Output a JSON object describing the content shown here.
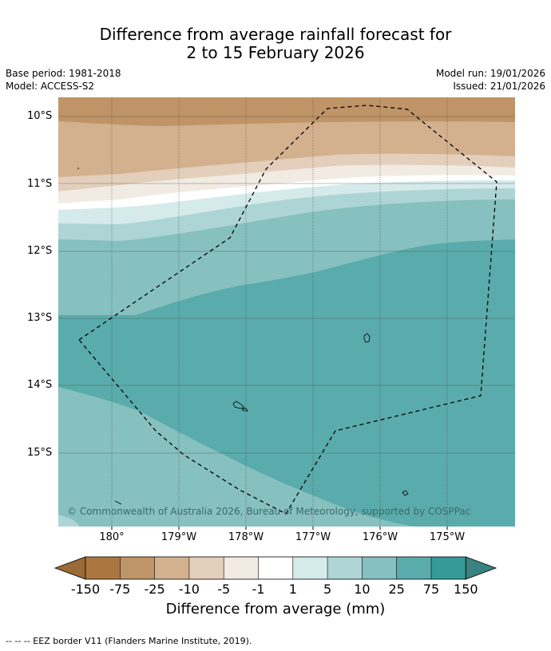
{
  "header": {
    "title_line1": "Difference from average rainfall forecast for",
    "title_line2": "2 to 15 February 2026",
    "base_period": "Base period: 1981-2018",
    "model": "Model: ACCESS-S2",
    "model_run": "Model run: 19/01/2026",
    "issued": "Issued: 21/01/2026"
  },
  "map": {
    "lat_labels": [
      "10°S",
      "11°S",
      "12°S",
      "13°S",
      "14°S",
      "15°S"
    ],
    "lon_labels": [
      "180°",
      "179°W",
      "178°W",
      "177°W",
      "176°W",
      "175°W"
    ],
    "copyright": "© Commonwealth of Australia 2026, Bureau of Meteorology, supported by COSPPac",
    "eez_border": "dashed",
    "gridlines": true
  },
  "colorbar": {
    "title": "Difference from average (mm)",
    "ticks": [
      "-150",
      "-75",
      "-25",
      "-10",
      "-5",
      "-1",
      "1",
      "5",
      "10",
      "25",
      "75",
      "150"
    ],
    "colors": [
      "#ab7740",
      "#bf9466",
      "#d3b18e",
      "#e3cfbb",
      "#f1ebe4",
      "#ffffff",
      "#d5eaea",
      "#aed5d5",
      "#86c0bf",
      "#5aabab",
      "#349b99"
    ],
    "extend_low": "#9a6a37",
    "extend_high": "#3a8281"
  },
  "footnote": "--  --  -- EEZ border V11 (Flanders Marine Institute, 2019)."
}
